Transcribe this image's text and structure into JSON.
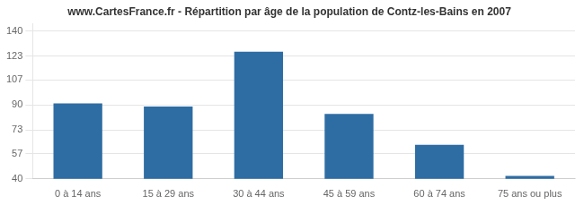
{
  "chart_data": {
    "type": "bar",
    "title": "www.CartesFrance.fr - Répartition par âge de la population de Contz-les-Bains en 2007",
    "categories": [
      "0 à 14 ans",
      "15 à 29 ans",
      "30 à 44 ans",
      "45 à 59 ans",
      "60 à 74 ans",
      "75 ans ou plus"
    ],
    "values": [
      91,
      89,
      126,
      84,
      63,
      42
    ],
    "color": "#2E6DA4",
    "ylim": [
      40,
      145
    ],
    "yticks": [
      40,
      57,
      73,
      90,
      107,
      123,
      140
    ],
    "grid": true
  }
}
